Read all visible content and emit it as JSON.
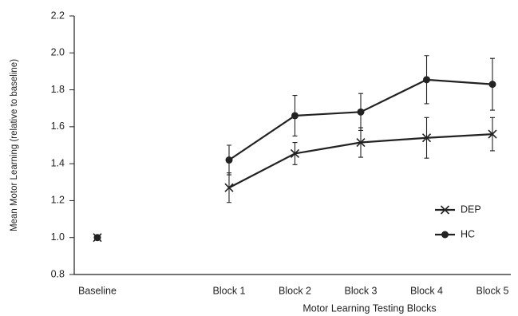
{
  "chart_data": {
    "type": "line",
    "xlabel": "Motor Learning Testing Blocks",
    "ylabel": "Mean Motor Learning (relative to baseline)",
    "categories": [
      "Baseline",
      null,
      "Block 1",
      "Block 2",
      "Block 3",
      "Block 4",
      "Block 5"
    ],
    "series": [
      {
        "name": "DEP",
        "color": "#222222",
        "marker": "x",
        "values": [
          1.0,
          null,
          1.27,
          1.455,
          1.515,
          1.54,
          1.56
        ],
        "errors": [
          0.01,
          null,
          0.08,
          0.06,
          0.08,
          0.11,
          0.09
        ]
      },
      {
        "name": "HC",
        "color": "#222222",
        "marker": "circle",
        "values": [
          1.0,
          null,
          1.42,
          1.66,
          1.68,
          1.855,
          1.83
        ],
        "errors": [
          0.01,
          null,
          0.08,
          0.11,
          0.1,
          0.13,
          0.14
        ]
      }
    ],
    "ylim": [
      0.8,
      2.2
    ],
    "yticks": [
      0.8,
      {
        "value": 1,
        "label": "1.0"
      },
      1.2,
      1.4,
      1.6,
      1.8,
      {
        "value": 2,
        "label": "2.0"
      },
      2.2
    ],
    "grid": false,
    "legend": "right"
  }
}
